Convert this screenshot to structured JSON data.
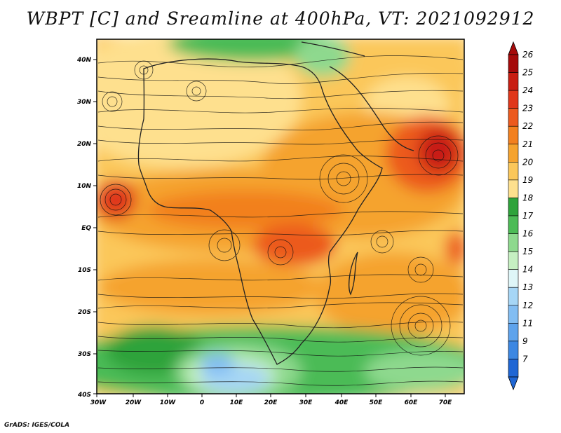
{
  "title": "WBPT [C] and Sreamline at 400hPa, VT: 2021092912",
  "credit": "GrADS: IGES/COLA",
  "map": {
    "lon_labels": [
      "30W",
      "20W",
      "10W",
      "0",
      "10E",
      "20E",
      "30E",
      "40E",
      "50E",
      "60E",
      "70E"
    ],
    "lat_labels": [
      "40N",
      "30N",
      "20N",
      "10N",
      "EQ",
      "10S",
      "20S",
      "30S",
      "40S"
    ]
  },
  "colorbar": {
    "levels": [
      "26",
      "25",
      "24",
      "23",
      "22",
      "21",
      "20",
      "19",
      "18",
      "17",
      "16",
      "15",
      "14",
      "13",
      "12",
      "11",
      "9",
      "7"
    ],
    "colors": [
      "#a50a0a",
      "#c81e12",
      "#e0371a",
      "#ec5a1e",
      "#f2801f",
      "#f5a32e",
      "#fbc75a",
      "#fee08e",
      "#2ea33b",
      "#4cbb56",
      "#8ed98e",
      "#c6f0c2",
      "#dff6f8",
      "#a6d6f6",
      "#82bdf2",
      "#5ea3ec",
      "#3c87e2",
      "#1f66d4"
    ]
  }
}
